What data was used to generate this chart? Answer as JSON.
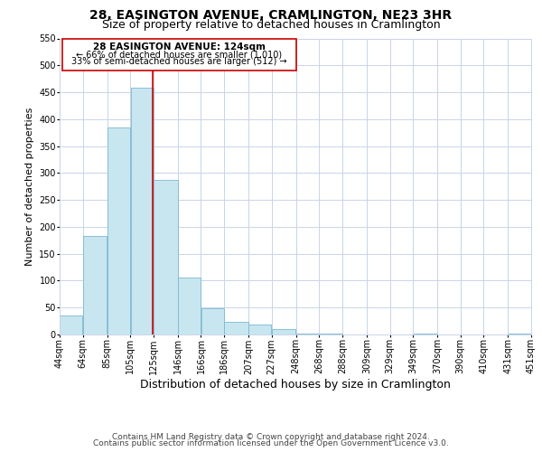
{
  "title": "28, EASINGTON AVENUE, CRAMLINGTON, NE23 3HR",
  "subtitle": "Size of property relative to detached houses in Cramlington",
  "xlabel": "Distribution of detached houses by size in Cramlington",
  "ylabel": "Number of detached properties",
  "bar_left_edges": [
    44,
    64,
    85,
    105,
    125,
    146,
    166,
    186,
    207,
    227,
    248,
    268,
    288,
    309,
    329,
    349,
    370,
    390,
    410,
    431
  ],
  "bar_widths": [
    20,
    21,
    20,
    20,
    21,
    20,
    20,
    21,
    20,
    21,
    20,
    20,
    21,
    20,
    20,
    21,
    20,
    20,
    21,
    20
  ],
  "bar_heights": [
    35,
    183,
    385,
    458,
    288,
    105,
    49,
    23,
    18,
    10,
    2,
    1,
    0,
    0,
    0,
    1,
    0,
    0,
    0,
    1
  ],
  "bar_color": "#c8e6f0",
  "bar_edge_color": "#7ab8d0",
  "tick_labels": [
    "44sqm",
    "64sqm",
    "85sqm",
    "105sqm",
    "125sqm",
    "146sqm",
    "166sqm",
    "186sqm",
    "207sqm",
    "227sqm",
    "248sqm",
    "268sqm",
    "288sqm",
    "309sqm",
    "329sqm",
    "349sqm",
    "370sqm",
    "390sqm",
    "410sqm",
    "431sqm",
    "451sqm"
  ],
  "ylim": [
    0,
    550
  ],
  "yticks": [
    0,
    50,
    100,
    150,
    200,
    250,
    300,
    350,
    400,
    450,
    500,
    550
  ],
  "vline_x": 124,
  "vline_color": "#cc0000",
  "annotation_title": "28 EASINGTON AVENUE: 124sqm",
  "annotation_line1": "← 66% of detached houses are smaller (1,010)",
  "annotation_line2": "33% of semi-detached houses are larger (512) →",
  "annotation_box_color": "#ffffff",
  "annotation_box_edge": "#cc0000",
  "footer_line1": "Contains HM Land Registry data © Crown copyright and database right 2024.",
  "footer_line2": "Contains public sector information licensed under the Open Government Licence v3.0.",
  "background_color": "#ffffff",
  "grid_color": "#c8d4e8",
  "title_fontsize": 10,
  "subtitle_fontsize": 9,
  "xlabel_fontsize": 9,
  "ylabel_fontsize": 8,
  "tick_fontsize": 7,
  "footer_fontsize": 6.5
}
